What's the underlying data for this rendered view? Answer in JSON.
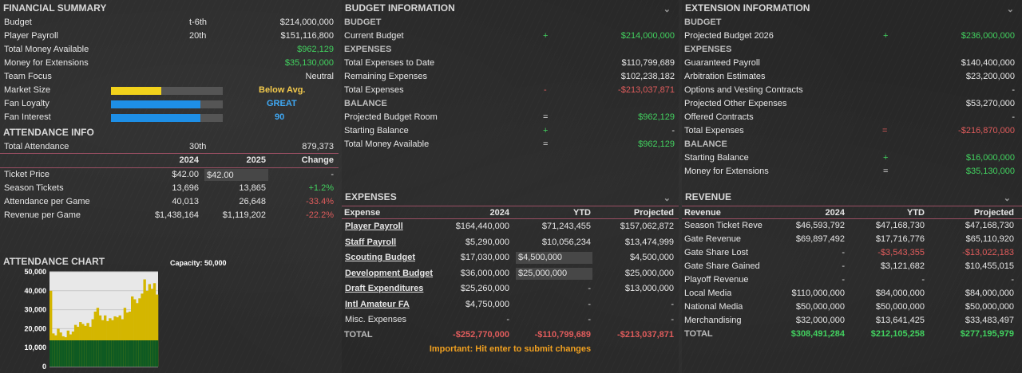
{
  "financial_summary": {
    "title": "FINANCIAL SUMMARY",
    "budget": {
      "label": "Budget",
      "rank": "t-6th",
      "value": "$214,000,000"
    },
    "player_payroll": {
      "label": "Player Payroll",
      "rank": "20th",
      "value": "$151,116,800"
    },
    "total_money_available": {
      "label": "Total Money Available",
      "value": "$962,129"
    },
    "money_for_extensions": {
      "label": "Money for Extensions",
      "value": "$35,130,000"
    },
    "team_focus": {
      "label": "Team Focus",
      "value": "Neutral"
    },
    "market_size": {
      "label": "Market Size",
      "value": "Below Avg.",
      "level": 0.45,
      "color": "#f2d21b"
    },
    "fan_loyalty": {
      "label": "Fan Loyalty",
      "value": "GREAT",
      "level": 0.8,
      "color": "#1e8fe6"
    },
    "fan_interest": {
      "label": "Fan Interest",
      "value": "90",
      "level": 0.8,
      "color": "#1e8fe6"
    }
  },
  "attendance_info": {
    "title": "ATTENDANCE INFO",
    "total_attendance": {
      "label": "Total Attendance",
      "rank": "30th",
      "value": "879,373"
    },
    "headers": {
      "y1": "2024",
      "y2": "2025",
      "change": "Change"
    },
    "rows": [
      {
        "label": "Ticket Price",
        "y1": "$42.00",
        "y2": "$42.00",
        "change": "-"
      },
      {
        "label": "Season Tickets",
        "y1": "13,696",
        "y2": "13,865",
        "change": "+1.2%"
      },
      {
        "label": "Attendance per Game",
        "y1": "40,013",
        "y2": "26,648",
        "change": "-33.4%"
      },
      {
        "label": "Revenue per Game",
        "y1": "$1,438,164",
        "y2": "$1,119,202",
        "change": "-22.2%"
      }
    ]
  },
  "attendance_chart": {
    "title": "ATTENDANCE CHART",
    "capacity_label": "Capacity: 50,000"
  },
  "chart_data": {
    "type": "bar",
    "title": "ATTENDANCE CHART",
    "ylim": [
      0,
      50000
    ],
    "yticks": [
      "0",
      "10,000",
      "20,000",
      "30,000",
      "40,000",
      "50,000"
    ],
    "season_ticket_base": 13865,
    "values": [
      40000,
      17500,
      16500,
      20000,
      18000,
      16000,
      15500,
      19000,
      17000,
      18500,
      22000,
      21000,
      23500,
      22500,
      21500,
      23000,
      21000,
      25000,
      29000,
      31000,
      27000,
      24500,
      27000,
      24000,
      25500,
      24500,
      26500,
      26000,
      27000,
      25000,
      31000,
      28500,
      29000,
      37000,
      35500,
      33500,
      36000,
      38500,
      46000,
      40000,
      43500,
      41000,
      44000,
      38000
    ]
  },
  "budget_information": {
    "title": "BUDGET INFORMATION",
    "budget_sub": "BUDGET",
    "current_budget": {
      "label": "Current Budget",
      "op": "+",
      "value": "$214,000,000"
    },
    "expenses_sub": "EXPENSES",
    "total_expenses_to_date": {
      "label": "Total Expenses to Date",
      "value": "$110,799,689"
    },
    "remaining_expenses": {
      "label": "Remaining Expenses",
      "value": "$102,238,182"
    },
    "total_expenses": {
      "label": "Total Expenses",
      "op": "-",
      "value": "-$213,037,871"
    },
    "balance_sub": "BALANCE",
    "projected_budget_room": {
      "label": "Projected Budget Room",
      "op": "=",
      "value": "$962,129"
    },
    "starting_balance": {
      "label": "Starting Balance",
      "op": "+",
      "value": "-"
    },
    "total_money_available": {
      "label": "Total Money Available",
      "op": "=",
      "value": "$962,129"
    }
  },
  "expenses": {
    "title": "EXPENSES",
    "headers": {
      "name": "Expense",
      "y2024": "2024",
      "ytd": "YTD",
      "projected": "Projected"
    },
    "rows": [
      {
        "name": "Player Payroll",
        "y2024": "$164,440,000",
        "ytd": "$71,243,455",
        "projected": "$157,062,872",
        "link": true
      },
      {
        "name": "Staff Payroll",
        "y2024": "$5,290,000",
        "ytd": "$10,056,234",
        "projected": "$13,474,999",
        "link": true
      },
      {
        "name": "Scouting Budget",
        "y2024": "$17,030,000",
        "ytd": "$4,500,000",
        "projected": "$4,500,000",
        "link": true,
        "input": true
      },
      {
        "name": "Development Budget",
        "y2024": "$36,000,000",
        "ytd": "$25,000,000",
        "projected": "$25,000,000",
        "link": true,
        "input": true
      },
      {
        "name": "Draft Expenditures",
        "y2024": "$25,260,000",
        "ytd": "-",
        "projected": "$13,000,000",
        "link": true
      },
      {
        "name": "Intl Amateur FA",
        "y2024": "$4,750,000",
        "ytd": "-",
        "projected": "-",
        "link": true
      },
      {
        "name": "Misc. Expenses",
        "y2024": "-",
        "ytd": "-",
        "projected": "-",
        "link": false
      }
    ],
    "total": {
      "name": "TOTAL",
      "y2024": "-$252,770,000",
      "ytd": "-$110,799,689",
      "projected": "-$213,037,871"
    },
    "note": "Important: Hit enter to submit changes"
  },
  "extension_information": {
    "title": "EXTENSION INFORMATION",
    "budget_sub": "BUDGET",
    "projected_budget": {
      "label": "Projected Budget 2026",
      "op": "+",
      "value": "$236,000,000"
    },
    "expenses_sub": "EXPENSES",
    "guaranteed_payroll": {
      "label": "Guaranteed Payroll",
      "value": "$140,400,000"
    },
    "arbitration_estimates": {
      "label": "Arbitration Estimates",
      "value": "$23,200,000"
    },
    "options_vesting": {
      "label": "Options and Vesting Contracts",
      "value": "-"
    },
    "projected_other": {
      "label": "Projected Other Expenses",
      "value": "$53,270,000"
    },
    "offered_contracts": {
      "label": "Offered Contracts",
      "value": "-"
    },
    "total_expenses": {
      "label": "Total Expenses",
      "op": "=",
      "value": "-$216,870,000"
    },
    "balance_sub": "BALANCE",
    "starting_balance": {
      "label": "Starting Balance",
      "op": "+",
      "value": "$16,000,000"
    },
    "money_for_extensions": {
      "label": "Money for Extensions",
      "op": "=",
      "value": "$35,130,000"
    }
  },
  "revenue": {
    "title": "REVENUE",
    "headers": {
      "name": "Revenue",
      "y2024": "2024",
      "ytd": "YTD",
      "projected": "Projected"
    },
    "rows": [
      {
        "name": "Season Ticket Reveni",
        "y2024": "$46,593,792",
        "ytd": "$47,168,730",
        "projected": "$47,168,730"
      },
      {
        "name": "Gate Revenue",
        "y2024": "$69,897,492",
        "ytd": "$17,716,776",
        "projected": "$65,110,920"
      },
      {
        "name": "Gate Share Lost",
        "y2024": "-",
        "ytd": "-$3,543,355",
        "projected": "-$13,022,183"
      },
      {
        "name": "Gate Share Gained",
        "y2024": "-",
        "ytd": "$3,121,682",
        "projected": "$10,455,015"
      },
      {
        "name": "Playoff Revenue",
        "y2024": "-",
        "ytd": "-",
        "projected": "-"
      },
      {
        "name": "Local Media",
        "y2024": "$110,000,000",
        "ytd": "$84,000,000",
        "projected": "$84,000,000"
      },
      {
        "name": "National Media",
        "y2024": "$50,000,000",
        "ytd": "$50,000,000",
        "projected": "$50,000,000"
      },
      {
        "name": "Merchandising",
        "y2024": "$32,000,000",
        "ytd": "$13,641,425",
        "projected": "$33,483,497"
      }
    ],
    "total": {
      "name": "TOTAL",
      "y2024": "$308,491,284",
      "ytd": "$212,105,258",
      "projected": "$277,195,979"
    }
  },
  "colors": {
    "accent_green": "#42d15f",
    "accent_red": "#e05c5c",
    "note_orange": "#f0a020",
    "bar_gold": "#d4b600",
    "bar_green": "#0f5a22"
  }
}
